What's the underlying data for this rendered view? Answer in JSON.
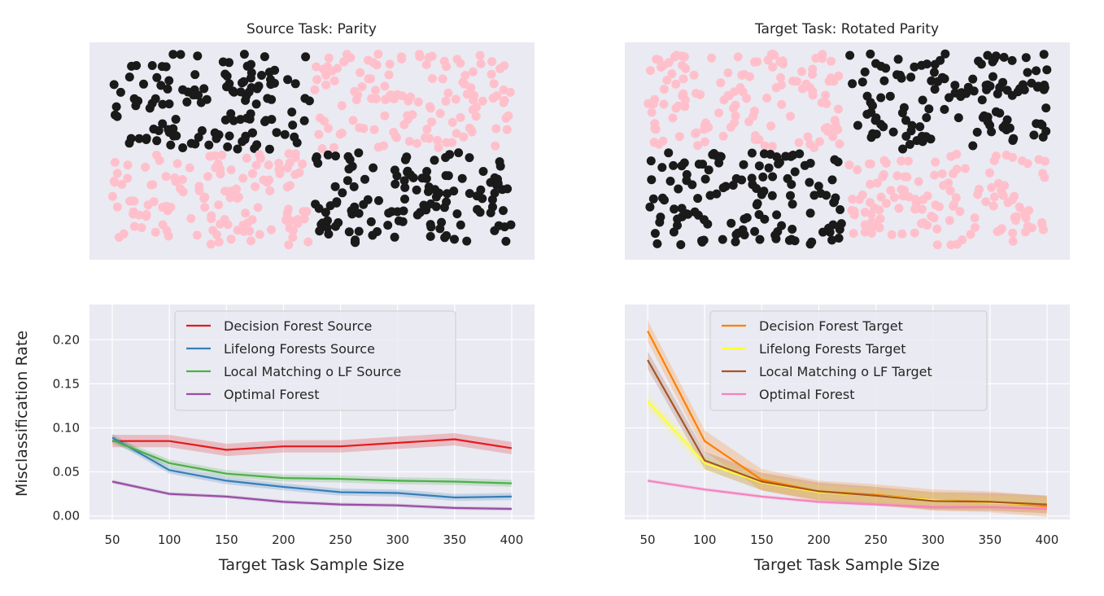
{
  "colors": {
    "axes_bg": "#eaeaf2",
    "grid": "#ffffff",
    "class_pink": "#ffc0cb",
    "class_black": "#1a1a1a"
  },
  "scatter_panels": [
    {
      "title": "Source Task: Parity",
      "class_layout": {
        "top_left": "black",
        "top_right": "pink",
        "bottom_left": "pink",
        "bottom_right": "black"
      }
    },
    {
      "title": "Target Task: Rotated Parity",
      "class_layout": {
        "top_left": "pink",
        "top_right": "black",
        "bottom_left": "black",
        "bottom_right": "pink"
      }
    }
  ],
  "chart_data": [
    {
      "type": "line",
      "xlabel": "Target Task Sample Size",
      "ylabel": "Misclassification Rate",
      "x": [
        50,
        100,
        150,
        200,
        250,
        300,
        350,
        400
      ],
      "xlim": [
        30,
        420
      ],
      "ylim": [
        -0.004,
        0.24
      ],
      "xticks": [
        "50",
        "100",
        "150",
        "200",
        "250",
        "300",
        "350",
        "400"
      ],
      "yticks": [
        "0.00",
        "0.05",
        "0.10",
        "0.15",
        "0.20"
      ],
      "grid": true,
      "legend": "upper-center",
      "series": [
        {
          "name": "Decision Forest Source",
          "color": "#e41a1c",
          "values": [
            0.085,
            0.085,
            0.075,
            0.079,
            0.079,
            0.083,
            0.087,
            0.077
          ],
          "band": 0.007
        },
        {
          "name": "Lifelong Forests Source",
          "color": "#377eb8",
          "values": [
            0.089,
            0.052,
            0.04,
            0.033,
            0.027,
            0.026,
            0.021,
            0.022
          ],
          "band": 0.004
        },
        {
          "name": "Local Matching o LF Source",
          "color": "#4daf4a",
          "values": [
            0.086,
            0.06,
            0.048,
            0.043,
            0.042,
            0.04,
            0.039,
            0.037
          ],
          "band": 0.004
        },
        {
          "name": "Optimal Forest",
          "color": "#984ea3",
          "values": [
            0.039,
            0.025,
            0.022,
            0.016,
            0.013,
            0.012,
            0.009,
            0.008
          ],
          "band": 0.002
        }
      ]
    },
    {
      "type": "line",
      "xlabel": "Target Task Sample Size",
      "ylabel": "",
      "x": [
        50,
        100,
        150,
        200,
        250,
        300,
        350,
        400
      ],
      "xlim": [
        30,
        420
      ],
      "ylim": [
        -0.004,
        0.24
      ],
      "xticks": [
        "50",
        "100",
        "150",
        "200",
        "250",
        "300",
        "350",
        "400"
      ],
      "yticks": [],
      "grid": true,
      "legend": "upper-center",
      "series": [
        {
          "name": "Decision Forest Target",
          "color": "#ff7f00",
          "values": [
            0.21,
            0.085,
            0.041,
            0.028,
            0.024,
            0.018,
            0.016,
            0.011
          ],
          "band": 0.012
        },
        {
          "name": "Lifelong Forests Target",
          "color": "#ffff33",
          "values": [
            0.13,
            0.06,
            0.038,
            0.027,
            0.023,
            0.018,
            0.015,
            0.013
          ],
          "band": 0.008
        },
        {
          "name": "Local Matching o LF Target",
          "color": "#a65628",
          "values": [
            0.177,
            0.063,
            0.039,
            0.028,
            0.023,
            0.017,
            0.016,
            0.013
          ],
          "band": 0.01
        },
        {
          "name": "Optimal Forest",
          "color": "#f781bf",
          "values": [
            0.04,
            0.03,
            0.022,
            0.016,
            0.013,
            0.01,
            0.01,
            0.008
          ],
          "band": 0.002
        }
      ]
    }
  ]
}
